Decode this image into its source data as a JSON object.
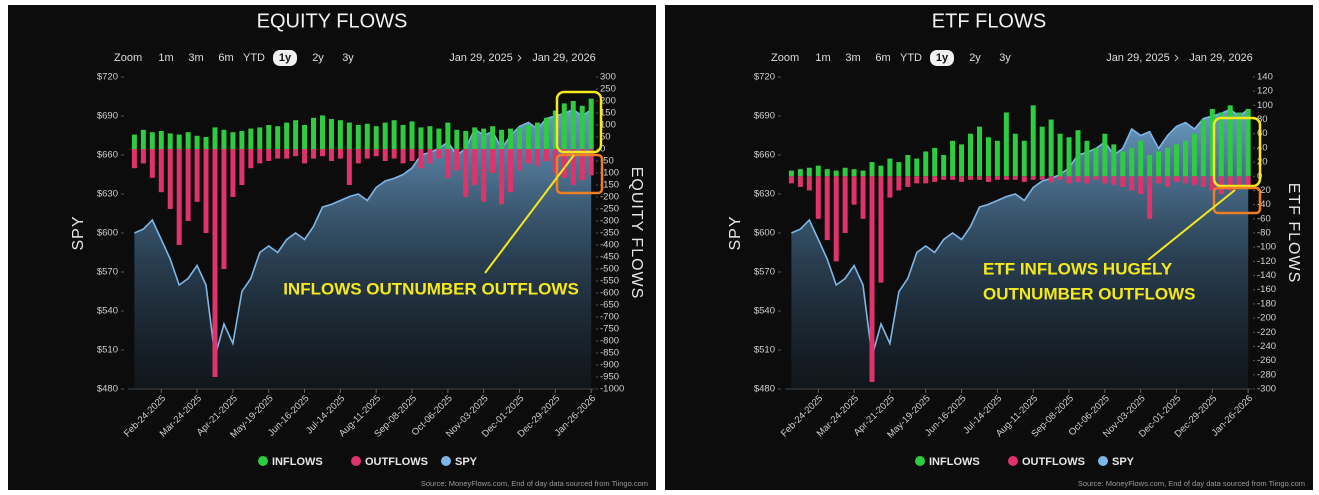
{
  "chart_data": [
    {
      "type": "combo",
      "title": "EQUITY FLOWS",
      "zoom_label": "Zoom",
      "zoom_options": [
        "1m",
        "3m",
        "6m",
        "YTD",
        "1y",
        "2y",
        "3y"
      ],
      "selected_zoom": 4,
      "xlim": [
        "Jan 29, 2025",
        "Jan 29, 2026"
      ],
      "xticks": [
        "Feb-24-2025",
        "Mar-24-2025",
        "Apr-21-2025",
        "May-19-2025",
        "Jun-16-2025",
        "Jul-14-2025",
        "Aug-11-2025",
        "Sep-08-2025",
        "Oct-06-2025",
        "Nov-03-2025",
        "Dec-01-2025",
        "Dec-29-2025",
        "Jan-26-2026"
      ],
      "ylabel": "SPY",
      "y2label": "EQUITY FLOWS",
      "ylim": [
        480,
        720
      ],
      "yticks": [
        {
          "value": 480,
          "label": "$480"
        },
        {
          "value": 510,
          "label": "$510"
        },
        {
          "value": 540,
          "label": "$540"
        },
        {
          "value": 570,
          "label": "$570"
        },
        {
          "value": 600,
          "label": "$600"
        },
        {
          "value": 630,
          "label": "$630"
        },
        {
          "value": 660,
          "label": "$660"
        },
        {
          "value": 690,
          "label": "$690"
        },
        {
          "value": 720,
          "label": "$720"
        }
      ],
      "y2lim": [
        -1000,
        300
      ],
      "y2ticks": [
        -1000,
        -950,
        -900,
        -850,
        -800,
        -750,
        -700,
        -650,
        -600,
        -550,
        -500,
        -450,
        -400,
        -350,
        -300,
        -250,
        -200,
        -150,
        -100,
        -50,
        0,
        50,
        100,
        150,
        200,
        250,
        300
      ],
      "x": [
        "Feb-03-2025",
        "Feb-10-2025",
        "Feb-17-2025",
        "Feb-24-2025",
        "Mar-03-2025",
        "Mar-10-2025",
        "Mar-17-2025",
        "Mar-24-2025",
        "Mar-31-2025",
        "Apr-07-2025",
        "Apr-14-2025",
        "Apr-21-2025",
        "Apr-28-2025",
        "May-05-2025",
        "May-12-2025",
        "May-19-2025",
        "May-26-2025",
        "Jun-02-2025",
        "Jun-09-2025",
        "Jun-16-2025",
        "Jun-23-2025",
        "Jun-30-2025",
        "Jul-07-2025",
        "Jul-14-2025",
        "Jul-21-2025",
        "Jul-28-2025",
        "Aug-04-2025",
        "Aug-11-2025",
        "Aug-18-2025",
        "Aug-25-2025",
        "Sep-01-2025",
        "Sep-08-2025",
        "Sep-15-2025",
        "Sep-22-2025",
        "Sep-29-2025",
        "Oct-06-2025",
        "Oct-13-2025",
        "Oct-20-2025",
        "Oct-27-2025",
        "Nov-03-2025",
        "Nov-10-2025",
        "Nov-17-2025",
        "Nov-24-2025",
        "Dec-01-2025",
        "Dec-08-2025",
        "Dec-15-2025",
        "Dec-22-2025",
        "Dec-29-2025",
        "Jan-05-2026",
        "Jan-12-2026",
        "Jan-19-2026",
        "Jan-26-2026"
      ],
      "series": [
        {
          "name": "INFLOWS",
          "color": "#2ecc40",
          "axis": "y2",
          "kind": "bar",
          "values": [
            60,
            80,
            70,
            75,
            65,
            60,
            70,
            55,
            50,
            90,
            80,
            70,
            75,
            85,
            90,
            100,
            95,
            110,
            120,
            100,
            130,
            140,
            125,
            120,
            110,
            100,
            105,
            95,
            110,
            120,
            100,
            115,
            90,
            95,
            85,
            110,
            80,
            75,
            90,
            85,
            95,
            80,
            85,
            90,
            100,
            110,
            130,
            160,
            190,
            200,
            180,
            210
          ]
        },
        {
          "name": "OUTFLOWS",
          "color": "#e0336b",
          "axis": "y2",
          "kind": "bar",
          "values": [
            -80,
            -60,
            -120,
            -180,
            -250,
            -400,
            -300,
            -220,
            -350,
            -950,
            -500,
            -200,
            -150,
            -80,
            -60,
            -50,
            -40,
            -40,
            -30,
            -60,
            -40,
            -30,
            -50,
            -40,
            -150,
            -60,
            -40,
            -30,
            -50,
            -40,
            -60,
            -50,
            -80,
            -60,
            -40,
            -120,
            -90,
            -200,
            -150,
            -220,
            -100,
            -230,
            -180,
            -90,
            -60,
            -70,
            -50,
            -100,
            -120,
            -150,
            -130,
            -110
          ]
        },
        {
          "name": "SPY",
          "color": "#7db7e8",
          "kind": "area",
          "values": [
            600,
            603,
            610,
            595,
            580,
            560,
            565,
            575,
            560,
            505,
            530,
            515,
            555,
            565,
            585,
            590,
            585,
            595,
            600,
            595,
            605,
            620,
            622,
            625,
            628,
            630,
            625,
            635,
            640,
            642,
            645,
            650,
            660,
            662,
            665,
            670,
            660,
            665,
            680,
            675,
            678,
            665,
            675,
            682,
            685,
            680,
            688,
            690,
            692,
            695,
            690,
            695
          ]
        }
      ],
      "annotation": [
        "INFLOWS OUTNUMBER OUTFLOWS"
      ],
      "source": "Source: MoneyFlows.com, End of day data sourced from Tiingo.com"
    },
    {
      "type": "combo",
      "title": "ETF FLOWS",
      "zoom_label": "Zoom",
      "zoom_options": [
        "1m",
        "3m",
        "6m",
        "YTD",
        "1y",
        "2y",
        "3y"
      ],
      "selected_zoom": 4,
      "xlim": [
        "Jan 29, 2025",
        "Jan 29, 2026"
      ],
      "xticks": [
        "Feb-24-2025",
        "Mar-24-2025",
        "Apr-21-2025",
        "May-19-2025",
        "Jun-16-2025",
        "Jul-14-2025",
        "Aug-11-2025",
        "Sep-08-2025",
        "Oct-06-2025",
        "Nov-03-2025",
        "Dec-01-2025",
        "Dec-29-2025",
        "Jan-26-2026"
      ],
      "ylabel": "SPY",
      "y2label": "ETF FLOWS",
      "ylim": [
        480,
        720
      ],
      "yticks": [
        {
          "value": 480,
          "label": "$480"
        },
        {
          "value": 510,
          "label": "$510"
        },
        {
          "value": 540,
          "label": "$540"
        },
        {
          "value": 570,
          "label": "$570"
        },
        {
          "value": 600,
          "label": "$600"
        },
        {
          "value": 630,
          "label": "$630"
        },
        {
          "value": 660,
          "label": "$660"
        },
        {
          "value": 690,
          "label": "$690"
        },
        {
          "value": 720,
          "label": "$720"
        }
      ],
      "y2lim": [
        -300,
        140
      ],
      "y2ticks": [
        -300,
        -280,
        -260,
        -240,
        -220,
        -200,
        -180,
        -160,
        -140,
        -120,
        -100,
        -80,
        -60,
        -40,
        -20,
        0,
        20,
        40,
        60,
        80,
        100,
        120,
        140
      ],
      "x": [
        "Feb-03-2025",
        "Feb-10-2025",
        "Feb-17-2025",
        "Feb-24-2025",
        "Mar-03-2025",
        "Mar-10-2025",
        "Mar-17-2025",
        "Mar-24-2025",
        "Mar-31-2025",
        "Apr-07-2025",
        "Apr-14-2025",
        "Apr-21-2025",
        "Apr-28-2025",
        "May-05-2025",
        "May-12-2025",
        "May-19-2025",
        "May-26-2025",
        "Jun-02-2025",
        "Jun-09-2025",
        "Jun-16-2025",
        "Jun-23-2025",
        "Jun-30-2025",
        "Jul-07-2025",
        "Jul-14-2025",
        "Jul-21-2025",
        "Jul-28-2025",
        "Aug-04-2025",
        "Aug-11-2025",
        "Aug-18-2025",
        "Aug-25-2025",
        "Sep-01-2025",
        "Sep-08-2025",
        "Sep-15-2025",
        "Sep-22-2025",
        "Sep-29-2025",
        "Oct-06-2025",
        "Oct-13-2025",
        "Oct-20-2025",
        "Oct-27-2025",
        "Nov-03-2025",
        "Nov-10-2025",
        "Nov-17-2025",
        "Nov-24-2025",
        "Dec-01-2025",
        "Dec-08-2025",
        "Dec-15-2025",
        "Dec-22-2025",
        "Dec-29-2025",
        "Jan-05-2026",
        "Jan-12-2026",
        "Jan-19-2026",
        "Jan-26-2026"
      ],
      "series": [
        {
          "name": "INFLOWS",
          "color": "#2ecc40",
          "axis": "y2",
          "kind": "bar",
          "values": [
            8,
            10,
            12,
            15,
            10,
            8,
            12,
            10,
            8,
            20,
            15,
            25,
            20,
            30,
            25,
            35,
            40,
            30,
            50,
            45,
            60,
            70,
            55,
            50,
            90,
            60,
            50,
            100,
            70,
            80,
            60,
            55,
            65,
            50,
            40,
            60,
            45,
            35,
            40,
            50,
            30,
            35,
            40,
            45,
            50,
            60,
            80,
            95,
            90,
            100,
            90,
            95
          ]
        },
        {
          "name": "OUTFLOWS",
          "color": "#e0336b",
          "axis": "y2",
          "kind": "bar",
          "values": [
            -10,
            -15,
            -20,
            -60,
            -90,
            -120,
            -80,
            -40,
            -60,
            -290,
            -150,
            -30,
            -20,
            -15,
            -10,
            -10,
            -8,
            -5,
            -5,
            -8,
            -5,
            -5,
            -8,
            -5,
            -5,
            -5,
            -8,
            -5,
            -5,
            -8,
            -5,
            -10,
            -8,
            -10,
            -5,
            -10,
            -12,
            -15,
            -20,
            -25,
            -60,
            -10,
            -15,
            -8,
            -10,
            -12,
            -15,
            -20,
            -25,
            -20,
            -18,
            -15
          ]
        },
        {
          "name": "SPY",
          "color": "#7db7e8",
          "kind": "area",
          "values": [
            600,
            603,
            610,
            595,
            580,
            560,
            565,
            575,
            560,
            505,
            530,
            515,
            555,
            565,
            585,
            590,
            585,
            595,
            600,
            595,
            605,
            620,
            622,
            625,
            628,
            630,
            625,
            635,
            640,
            642,
            645,
            650,
            660,
            662,
            665,
            670,
            660,
            665,
            680,
            675,
            678,
            665,
            675,
            682,
            685,
            680,
            688,
            690,
            692,
            695,
            690,
            695
          ]
        }
      ],
      "annotation": [
        "ETF INFLOWS  HUGELY",
        "OUTNUMBER OUTFLOWS"
      ],
      "source": "Source: MoneyFlows.com, End of day data sourced from Tiingo.com"
    }
  ]
}
